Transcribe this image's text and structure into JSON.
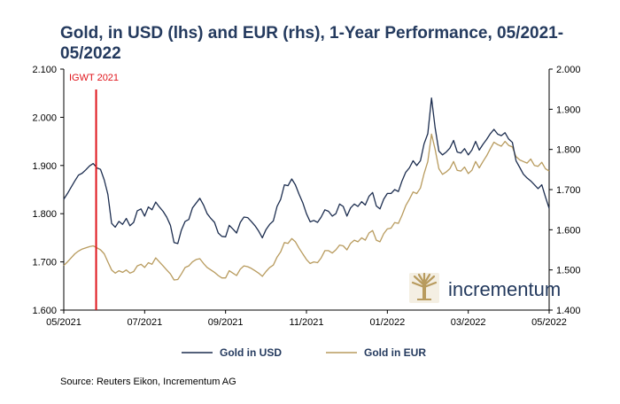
{
  "chart_data": {
    "type": "line",
    "title": "Gold, in USD (lhs) and EUR (rhs), 1-Year Performance, 05/2021-05/2022",
    "x_labels": [
      "05/2021",
      "07/2021",
      "09/2021",
      "11/2021",
      "01/2022",
      "03/2022",
      "05/2022"
    ],
    "y_left": {
      "min": 1600,
      "max": 2100,
      "ticks": [
        "1.600",
        "1.700",
        "1.800",
        "1.900",
        "2.000",
        "2.100"
      ]
    },
    "y_right": {
      "min": 1400,
      "max": 2000,
      "ticks": [
        "1.400",
        "1.500",
        "1.600",
        "1.700",
        "1.800",
        "1.900",
        "2.000"
      ]
    },
    "annotation": {
      "label": "IGWT 2021",
      "x_position": 0.4,
      "color": "#e0141b"
    },
    "series": [
      {
        "name": "Gold in USD",
        "axis": "left",
        "color": "#1c2d4f",
        "values": [
          1830,
          1842,
          1855,
          1868,
          1880,
          1884,
          1891,
          1899,
          1904,
          1895,
          1892,
          1870,
          1840,
          1780,
          1772,
          1784,
          1778,
          1790,
          1775,
          1782,
          1806,
          1810,
          1795,
          1814,
          1808,
          1824,
          1814,
          1805,
          1793,
          1776,
          1740,
          1738,
          1766,
          1784,
          1788,
          1812,
          1822,
          1832,
          1818,
          1800,
          1790,
          1782,
          1760,
          1753,
          1752,
          1776,
          1768,
          1760,
          1782,
          1793,
          1792,
          1784,
          1775,
          1764,
          1750,
          1767,
          1778,
          1785,
          1815,
          1830,
          1860,
          1858,
          1872,
          1860,
          1840,
          1823,
          1800,
          1783,
          1786,
          1782,
          1793,
          1808,
          1805,
          1795,
          1800,
          1820,
          1815,
          1795,
          1812,
          1820,
          1815,
          1825,
          1818,
          1836,
          1844,
          1816,
          1810,
          1830,
          1842,
          1842,
          1850,
          1846,
          1868,
          1886,
          1895,
          1910,
          1900,
          1910,
          1945,
          1966,
          2040,
          1978,
          1930,
          1922,
          1928,
          1936,
          1952,
          1928,
          1926,
          1935,
          1922,
          1932,
          1950,
          1932,
          1944,
          1954,
          1966,
          1975,
          1965,
          1962,
          1968,
          1955,
          1948,
          1910,
          1896,
          1882,
          1874,
          1868,
          1860,
          1852,
          1860,
          1835,
          1811
        ]
      },
      {
        "name": "Gold in EUR",
        "axis": "right",
        "color": "#b89b5e",
        "values": [
          1511,
          1520,
          1530,
          1540,
          1547,
          1552,
          1555,
          1558,
          1560,
          1555,
          1550,
          1540,
          1520,
          1500,
          1492,
          1498,
          1494,
          1500,
          1492,
          1496,
          1510,
          1514,
          1506,
          1518,
          1514,
          1530,
          1520,
          1510,
          1500,
          1490,
          1475,
          1476,
          1490,
          1506,
          1510,
          1520,
          1526,
          1528,
          1516,
          1506,
          1500,
          1494,
          1486,
          1480,
          1480,
          1498,
          1492,
          1486,
          1502,
          1510,
          1508,
          1504,
          1498,
          1492,
          1484,
          1496,
          1506,
          1512,
          1532,
          1545,
          1568,
          1566,
          1578,
          1570,
          1554,
          1540,
          1526,
          1516,
          1520,
          1518,
          1530,
          1548,
          1548,
          1542,
          1550,
          1562,
          1560,
          1550,
          1566,
          1574,
          1570,
          1580,
          1574,
          1592,
          1598,
          1574,
          1570,
          1590,
          1602,
          1604,
          1618,
          1616,
          1636,
          1660,
          1676,
          1694,
          1690,
          1704,
          1740,
          1770,
          1838,
          1800,
          1752,
          1738,
          1744,
          1752,
          1770,
          1748,
          1746,
          1756,
          1740,
          1748,
          1770,
          1754,
          1770,
          1784,
          1802,
          1818,
          1812,
          1808,
          1820,
          1810,
          1806,
          1782,
          1774,
          1770,
          1766,
          1776,
          1760,
          1758,
          1768,
          1752,
          1746
        ]
      }
    ]
  },
  "legend": {
    "usd_label": "Gold in USD",
    "eur_label": "Gold in EUR"
  },
  "logo": {
    "name": "incrementum",
    "color": "#b89b5e"
  },
  "source": "Source: Reuters Eikon, Incrementum AG"
}
